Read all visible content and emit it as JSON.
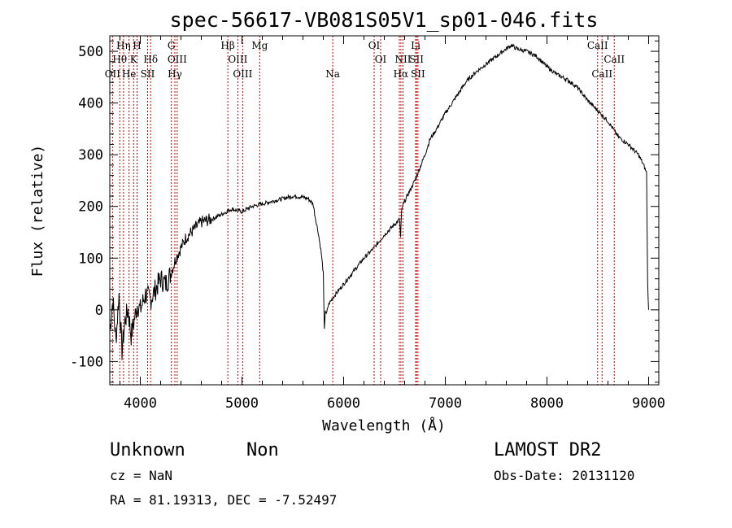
{
  "chart_data": {
    "type": "line",
    "title": "spec-56617-VB081S05V1_sp01-046.fits",
    "xlabel": "Wavelength (Å)",
    "ylabel": "Flux (relative)",
    "xlim": [
      3700,
      9100
    ],
    "ylim": [
      -145,
      530
    ],
    "xticks": [
      4000,
      5000,
      6000,
      7000,
      8000,
      9000
    ],
    "yticks": [
      -100,
      0,
      100,
      200,
      300,
      400,
      500
    ],
    "grid": false,
    "series": [
      {
        "x": [
          3700,
          3730,
          3760,
          3790,
          3820,
          3850,
          3880,
          3910,
          3940,
          3970,
          4000,
          4050,
          4100,
          4150,
          4200,
          4250,
          4300,
          4350,
          4400,
          4450,
          4500,
          4600,
          4700,
          4800,
          4900,
          5000,
          5100,
          5200,
          5300,
          5400,
          5500,
          5600,
          5650,
          5700,
          5720,
          5750,
          5780,
          5800,
          5810,
          5820,
          5830,
          5850,
          5900,
          6000,
          6100,
          6200,
          6300,
          6400,
          6500,
          6550,
          6560,
          6570,
          6580,
          6600,
          6650,
          6700,
          6750,
          6800,
          6850,
          6900,
          7000,
          7100,
          7200,
          7300,
          7400,
          7500,
          7600,
          7650,
          7700,
          7800,
          7900,
          8000,
          8100,
          8200,
          8300,
          8400,
          8500,
          8550,
          8600,
          8650,
          8700,
          8800,
          8900,
          8950,
          8980,
          8990,
          9000
        ],
        "y": [
          -40,
          20,
          -60,
          30,
          -80,
          -20,
          0,
          -50,
          -20,
          10,
          0,
          30,
          20,
          40,
          60,
          50,
          70,
          100,
          120,
          140,
          150,
          170,
          175,
          185,
          195,
          190,
          200,
          205,
          210,
          215,
          220,
          218,
          215,
          205,
          180,
          150,
          110,
          70,
          -40,
          0,
          -10,
          10,
          25,
          50,
          75,
          100,
          120,
          145,
          165,
          175,
          140,
          190,
          200,
          210,
          230,
          250,
          275,
          300,
          330,
          345,
          380,
          410,
          440,
          460,
          475,
          490,
          505,
          512,
          505,
          500,
          490,
          470,
          455,
          445,
          430,
          405,
          385,
          375,
          365,
          350,
          335,
          320,
          300,
          280,
          265,
          50,
          0
        ]
      }
    ],
    "line_labels": [
      {
        "text": "Hη",
        "x": 3835,
        "row": 0
      },
      {
        "text": "H",
        "x": 3968,
        "row": 0
      },
      {
        "text": "G",
        "x": 4305,
        "row": 0
      },
      {
        "text": "Hβ",
        "x": 4861,
        "row": 0
      },
      {
        "text": "Mg",
        "x": 5175,
        "row": 0
      },
      {
        "text": "OI",
        "x": 6300,
        "row": 0
      },
      {
        "text": "Li",
        "x": 6708,
        "row": 0
      },
      {
        "text": "CaII",
        "x": 8498,
        "row": 0
      },
      {
        "text": "Hθ",
        "x": 3798,
        "row": 1
      },
      {
        "text": "K",
        "x": 3934,
        "row": 1
      },
      {
        "text": "Hδ",
        "x": 4102,
        "row": 1
      },
      {
        "text": "OIII",
        "x": 4363,
        "row": 1
      },
      {
        "text": "OIII",
        "x": 4959,
        "row": 1
      },
      {
        "text": "OI",
        "x": 6364,
        "row": 1
      },
      {
        "text": "NII",
        "x": 6584,
        "row": 1
      },
      {
        "text": "SII",
        "x": 6717,
        "row": 1
      },
      {
        "text": "CaII",
        "x": 8662,
        "row": 1
      },
      {
        "text": "OII",
        "x": 3727,
        "row": 2
      },
      {
        "text": "He",
        "x": 3889,
        "row": 2
      },
      {
        "text": "SII",
        "x": 4072,
        "row": 2
      },
      {
        "text": "Hγ",
        "x": 4340,
        "row": 2
      },
      {
        "text": "OIII",
        "x": 5007,
        "row": 2
      },
      {
        "text": "Na",
        "x": 5893,
        "row": 2
      },
      {
        "text": "Hα",
        "x": 6563,
        "row": 2
      },
      {
        "text": "SII",
        "x": 6731,
        "row": 2
      },
      {
        "text": "CaII",
        "x": 8542,
        "row": 2
      }
    ],
    "line_markers_x": [
      3727,
      3798,
      3835,
      3889,
      3934,
      3968,
      4072,
      4102,
      4305,
      4340,
      4363,
      4861,
      4959,
      5007,
      5175,
      5893,
      6300,
      6364,
      6548,
      6563,
      6584,
      6708,
      6717,
      6731,
      8498,
      8542,
      8662
    ],
    "marker_color": "#cc0000"
  },
  "footer": {
    "object": "Unknown",
    "subclass": "Non",
    "survey": "LAMOST DR2",
    "cz": "cz = NaN",
    "obs_date": "Obs-Date: 20131120",
    "coords": "RA =  81.19313, DEC =  -7.52497"
  }
}
